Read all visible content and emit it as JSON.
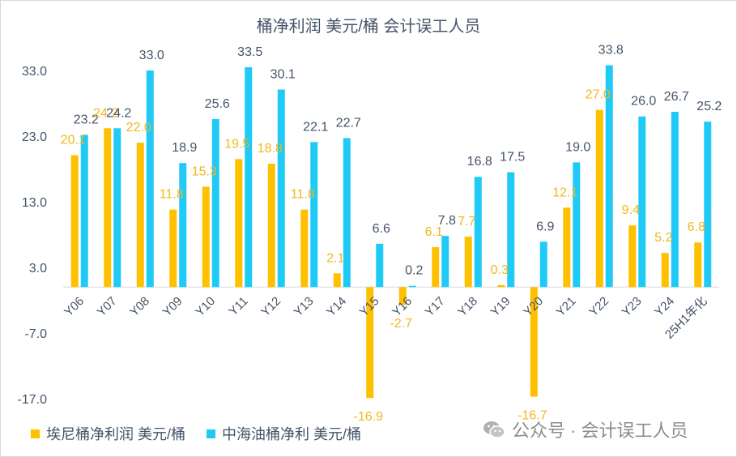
{
  "chart_data": {
    "type": "bar",
    "title": "桶净利润 美元/桶 会计误工人员",
    "categories": [
      "Y06",
      "Y07",
      "Y08",
      "Y09",
      "Y10",
      "Y11",
      "Y12",
      "Y13",
      "Y14",
      "Y15",
      "Y16",
      "Y17",
      "Y18",
      "Y19",
      "Y20",
      "Y21",
      "Y22",
      "Y23",
      "Y24",
      "25H1年化"
    ],
    "series": [
      {
        "name": "埃尼桶净利润 美元/桶",
        "color": "#ffc000",
        "labelColor": "#f2b71c",
        "values": [
          20.1,
          24.2,
          22.0,
          11.8,
          15.3,
          19.5,
          18.8,
          11.8,
          2.1,
          -16.9,
          -2.7,
          6.1,
          7.7,
          0.3,
          -16.7,
          12.1,
          27.0,
          9.4,
          5.2,
          6.8
        ]
      },
      {
        "name": "中海油桶净利 美元/桶",
        "color": "#1fcaf7",
        "labelColor": "#44546a",
        "values": [
          23.2,
          24.2,
          33.0,
          18.9,
          25.6,
          33.5,
          30.1,
          22.1,
          22.7,
          6.6,
          0.2,
          7.8,
          16.8,
          17.5,
          6.9,
          19.0,
          33.8,
          26.0,
          26.7,
          25.2
        ]
      }
    ],
    "ylim": [
      -17,
      33
    ],
    "yticks": [
      33.0,
      23.0,
      13.0,
      3.0,
      -7.0,
      -17.0
    ],
    "xlabel": "",
    "ylabel": "",
    "grid": false,
    "legend": "bottom-left"
  },
  "legend": {
    "series1": "埃尼桶净利润 美元/桶",
    "series2": "中海油桶净利 美元/桶"
  },
  "watermark": {
    "text": "公众号 · 会计误工人员",
    "icon": "wechat-icon"
  }
}
